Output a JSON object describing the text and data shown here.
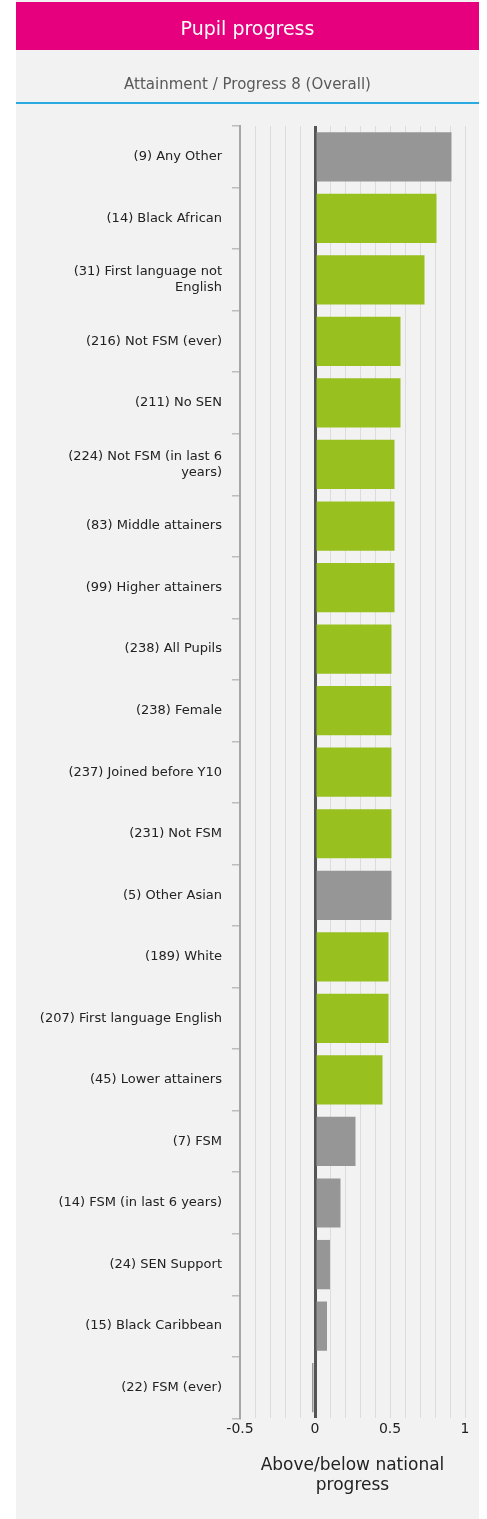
{
  "chart_data": {
    "type": "bar",
    "orientation": "horizontal",
    "title": "Pupil progress",
    "subtitle": "Attainment / Progress 8 (Overall)",
    "xlabel": "Above/below national progress",
    "categories": [
      "(9) Any Other",
      "(14) Black African",
      "(31) First language not English",
      "(216) Not FSM (ever)",
      "(211) No SEN",
      "(224) Not FSM (in last 6 years)",
      "(83) Middle attainers",
      "(99) Higher attainers",
      "(238) All Pupils",
      "(238) Female",
      "(237) Joined before Y10",
      "(231) Not FSM",
      "(5) Other Asian",
      "(189) White",
      "(207) First language English",
      "(45) Lower attainers",
      "(7) FSM",
      "(14) FSM (in last 6 years)",
      "(24) SEN Support",
      "(15) Black Caribbean",
      "(22) FSM (ever)"
    ],
    "values": [
      0.91,
      0.81,
      0.73,
      0.57,
      0.57,
      0.53,
      0.53,
      0.53,
      0.51,
      0.51,
      0.51,
      0.51,
      0.51,
      0.49,
      0.49,
      0.45,
      0.27,
      0.17,
      0.1,
      0.08,
      -0.02
    ],
    "colors": [
      "#969696",
      "#98c120",
      "#98c120",
      "#98c120",
      "#98c120",
      "#98c120",
      "#98c120",
      "#98c120",
      "#98c120",
      "#98c120",
      "#98c120",
      "#98c120",
      "#969696",
      "#98c120",
      "#98c120",
      "#98c120",
      "#969696",
      "#969696",
      "#969696",
      "#969696",
      "#969696"
    ],
    "xlim": [
      -0.5,
      1
    ],
    "xticks": [
      -0.5,
      {
        "value": -0.4,
        "label": null
      },
      {
        "value": -0.3,
        "label": null
      },
      {
        "value": -0.2,
        "label": null
      },
      {
        "value": -0.1,
        "label": null
      },
      0,
      {
        "value": 0.1,
        "label": null
      },
      {
        "value": 0.2,
        "label": null
      },
      {
        "value": 0.3,
        "label": null
      },
      {
        "value": 0.4,
        "label": null
      },
      0.5,
      {
        "value": 0.6,
        "label": null
      },
      {
        "value": 0.7,
        "label": null
      },
      {
        "value": 0.8,
        "label": null
      },
      {
        "value": 0.9,
        "label": null
      },
      1
    ],
    "grid": "x",
    "legend": false
  }
}
